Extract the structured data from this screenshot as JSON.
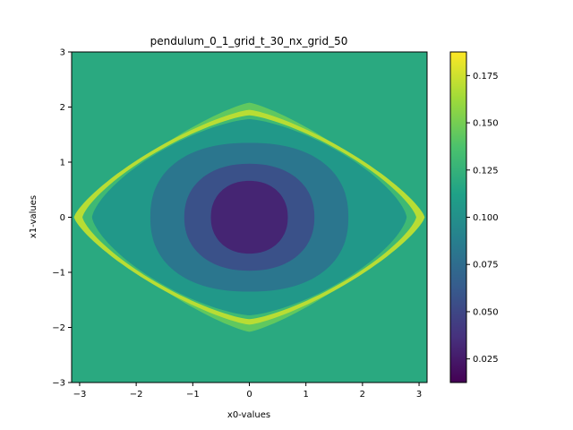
{
  "chart_data": {
    "type": "heatmap",
    "subtype": "filled-contour",
    "title": "pendulum_0_1_grid_t_30_nx_grid_50",
    "xlabel": "x0-values",
    "ylabel": "x1-values",
    "xlim": [
      -3.14159,
      3.14159
    ],
    "ylim": [
      -3,
      3
    ],
    "x_ticks": [
      -3,
      -2,
      -1,
      0,
      1,
      2,
      3
    ],
    "x_tick_labels": [
      "−3",
      "−2",
      "−1",
      "0",
      "1",
      "2",
      "3"
    ],
    "y_ticks": [
      -3,
      -2,
      -1,
      0,
      1,
      2,
      3
    ],
    "y_tick_labels": [
      "−3",
      "−2",
      "−1",
      "0",
      "1",
      "2",
      "3"
    ],
    "grid": false,
    "colormap": "viridis",
    "colorbar": {
      "range": [
        0.0125,
        0.1875
      ],
      "ticks": [
        0.025,
        0.05,
        0.075,
        0.1,
        0.125,
        0.15,
        0.175
      ],
      "tick_labels": [
        "0.025",
        "0.050",
        "0.075",
        "0.100",
        "0.125",
        "0.150",
        "0.175"
      ],
      "levels": [
        0.0125,
        0.025,
        0.0375,
        0.05,
        0.0625,
        0.075,
        0.0875,
        0.1,
        0.1125,
        0.125,
        0.1375,
        0.15,
        0.1625,
        0.175,
        0.1875
      ]
    },
    "regions": [
      {
        "name": "background",
        "value": 0.119
      },
      {
        "name": "separatrix-outer-band",
        "value": 0.144,
        "half_width": 2.95,
        "half_height": 2.08
      },
      {
        "name": "separatrix-ridge",
        "value": 0.169,
        "half_width": 3.1,
        "half_height": 1.95
      },
      {
        "name": "separatrix-inner-band",
        "value": 0.131,
        "half_width": 2.95,
        "half_height": 1.85
      },
      {
        "name": "ring-outer",
        "value": 0.106,
        "half_width": 2.78,
        "half_height": 1.78
      },
      {
        "name": "ring-0.081",
        "value": 0.081,
        "half_width": 1.75,
        "half_height": 1.35
      },
      {
        "name": "ring-0.056",
        "value": 0.056,
        "half_width": 1.15,
        "half_height": 0.97
      },
      {
        "name": "core",
        "value": 0.031,
        "half_width": 0.68,
        "half_height": 0.66
      }
    ]
  }
}
